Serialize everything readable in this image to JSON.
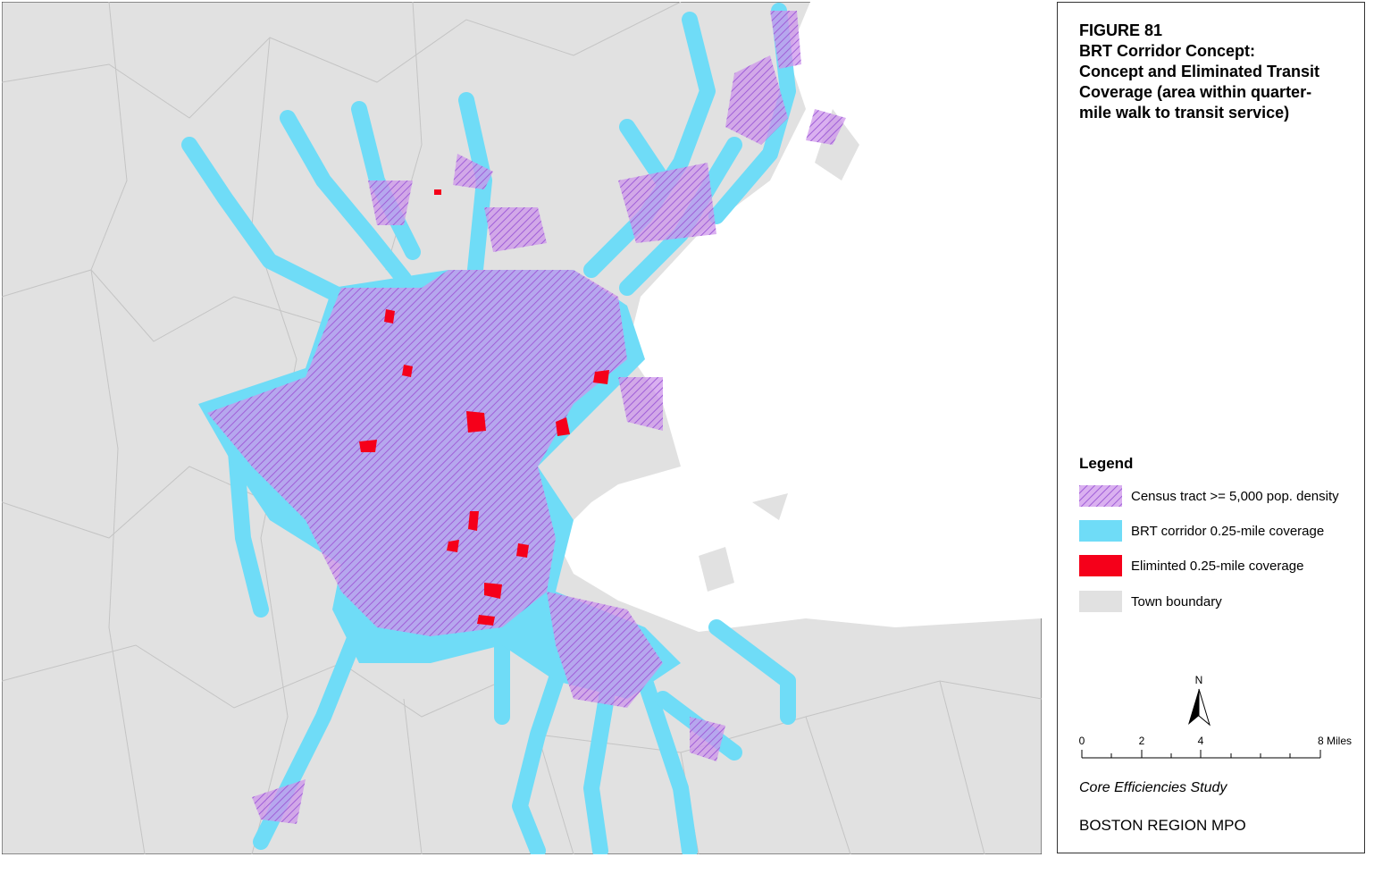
{
  "figure": {
    "number": "FIGURE 81",
    "title_lines": [
      "BRT Corridor Concept:",
      "Concept and Eliminated Transit",
      "Coverage (area within quarter-",
      "mile walk to transit service)"
    ]
  },
  "legend": {
    "title": "Legend",
    "items": [
      "Census tract >= 5,000 pop. density",
      "BRT corridor 0.25-mile coverage",
      "Eliminted 0.25-mile coverage",
      "Town boundary"
    ]
  },
  "north_arrow": "N",
  "scale_bar": {
    "labels": [
      "0",
      "2",
      "4",
      "8 Miles"
    ]
  },
  "footer": {
    "study": "Core Efficiencies Study",
    "organization": "BOSTON REGION MPO"
  }
}
